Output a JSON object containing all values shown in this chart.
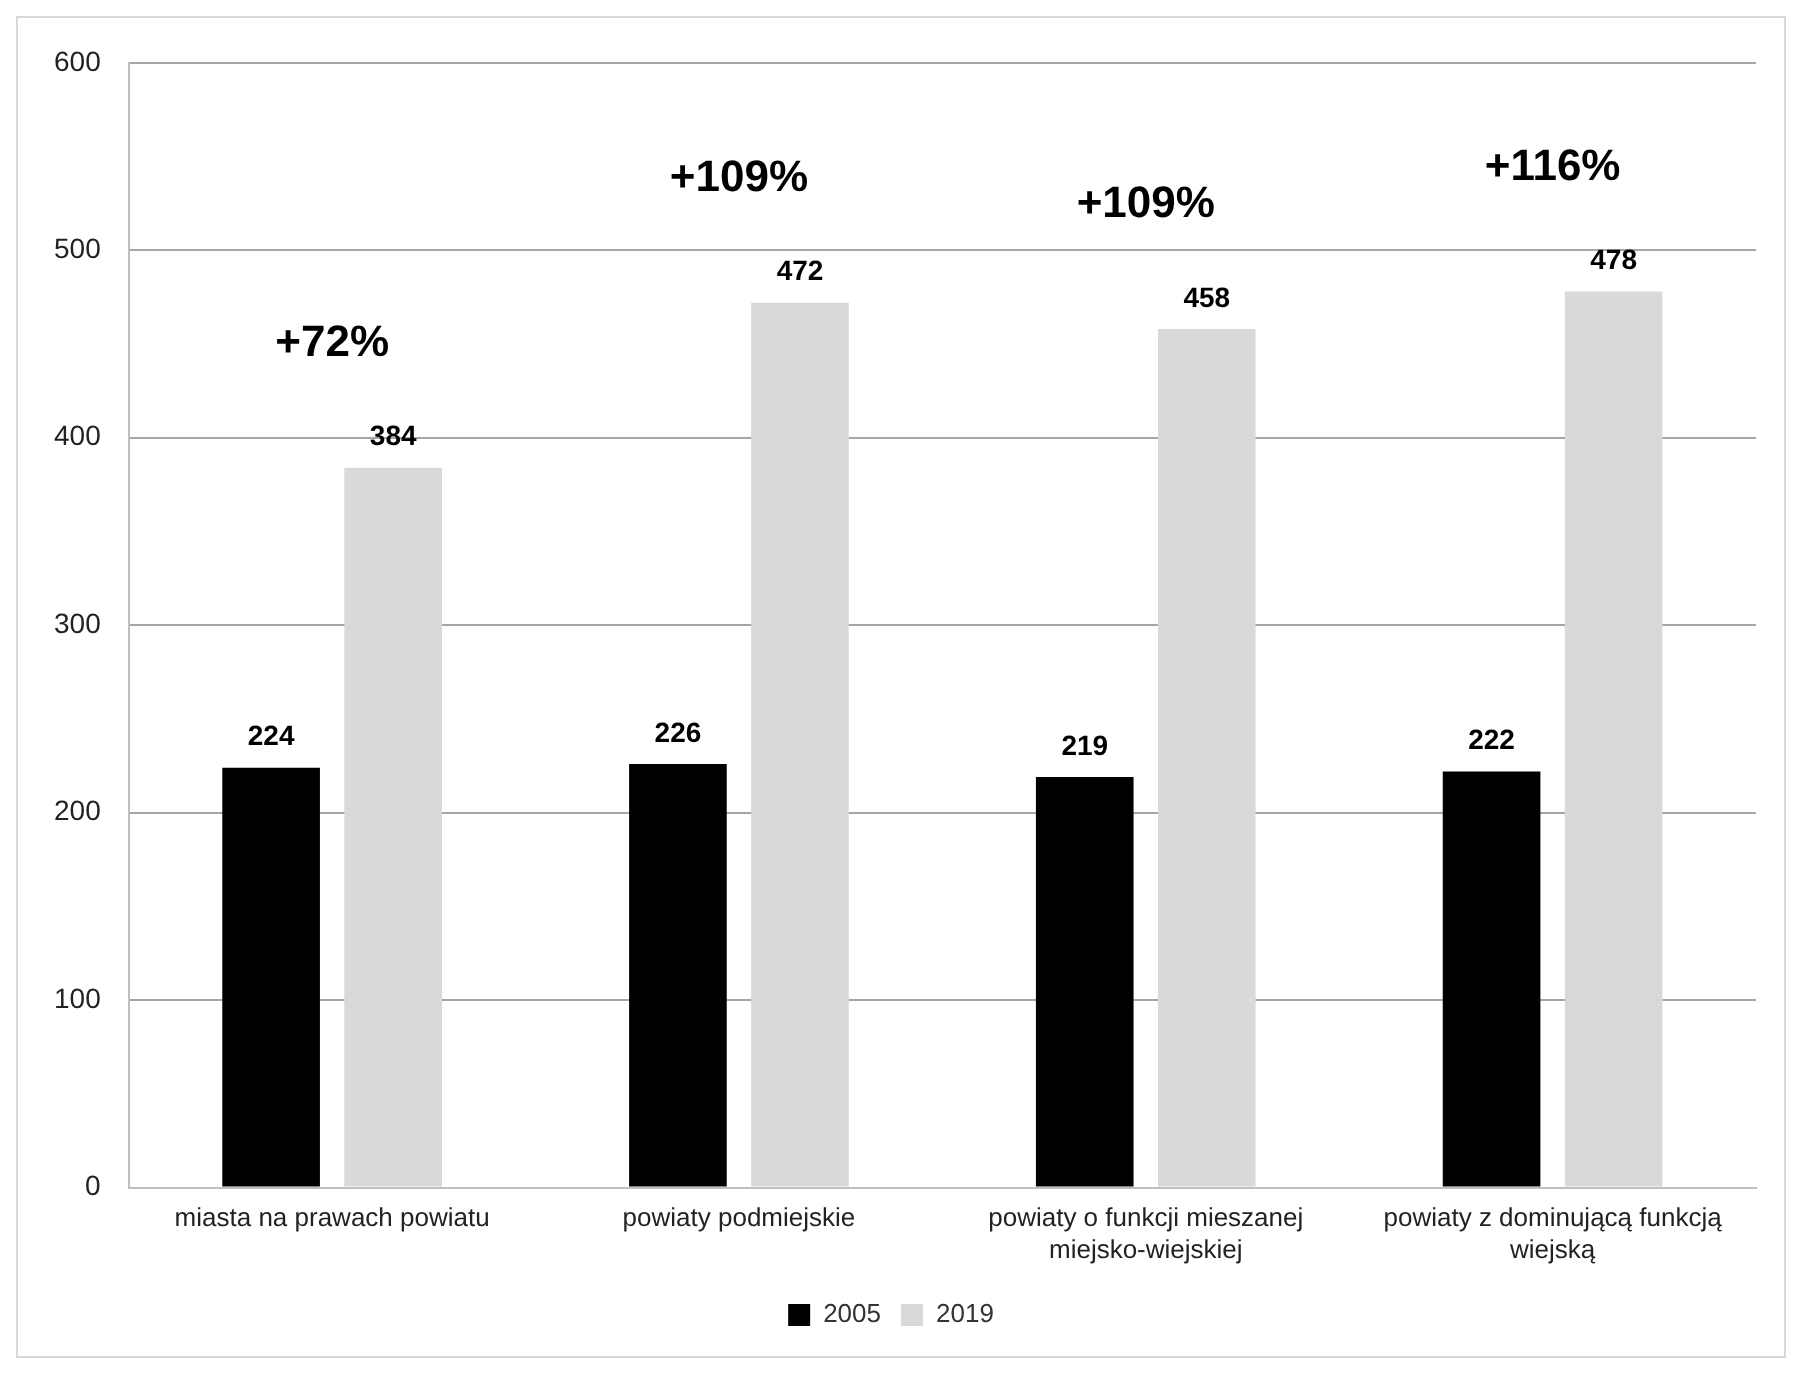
{
  "chart_data": {
    "type": "bar",
    "categories": [
      "miasta na prawach powiatu",
      "powiaty podmiejskie",
      "powiaty o funkcji mieszanej miejsko-wiejskiej",
      "powiaty z dominującą funkcją wiejską"
    ],
    "series": [
      {
        "name": "2005",
        "color": "#000000",
        "values": [
          224,
          226,
          219,
          222
        ]
      },
      {
        "name": "2019",
        "color": "#d9d9d9",
        "values": [
          384,
          472,
          458,
          478
        ]
      }
    ],
    "ylim": [
      0,
      600
    ],
    "yticks": [
      0,
      100,
      200,
      300,
      400,
      500,
      600
    ],
    "grid": "y",
    "legend": "bottom",
    "data_labels": true,
    "annotations": [
      "+72%",
      "+109%",
      "+109%",
      "+116%"
    ]
  }
}
